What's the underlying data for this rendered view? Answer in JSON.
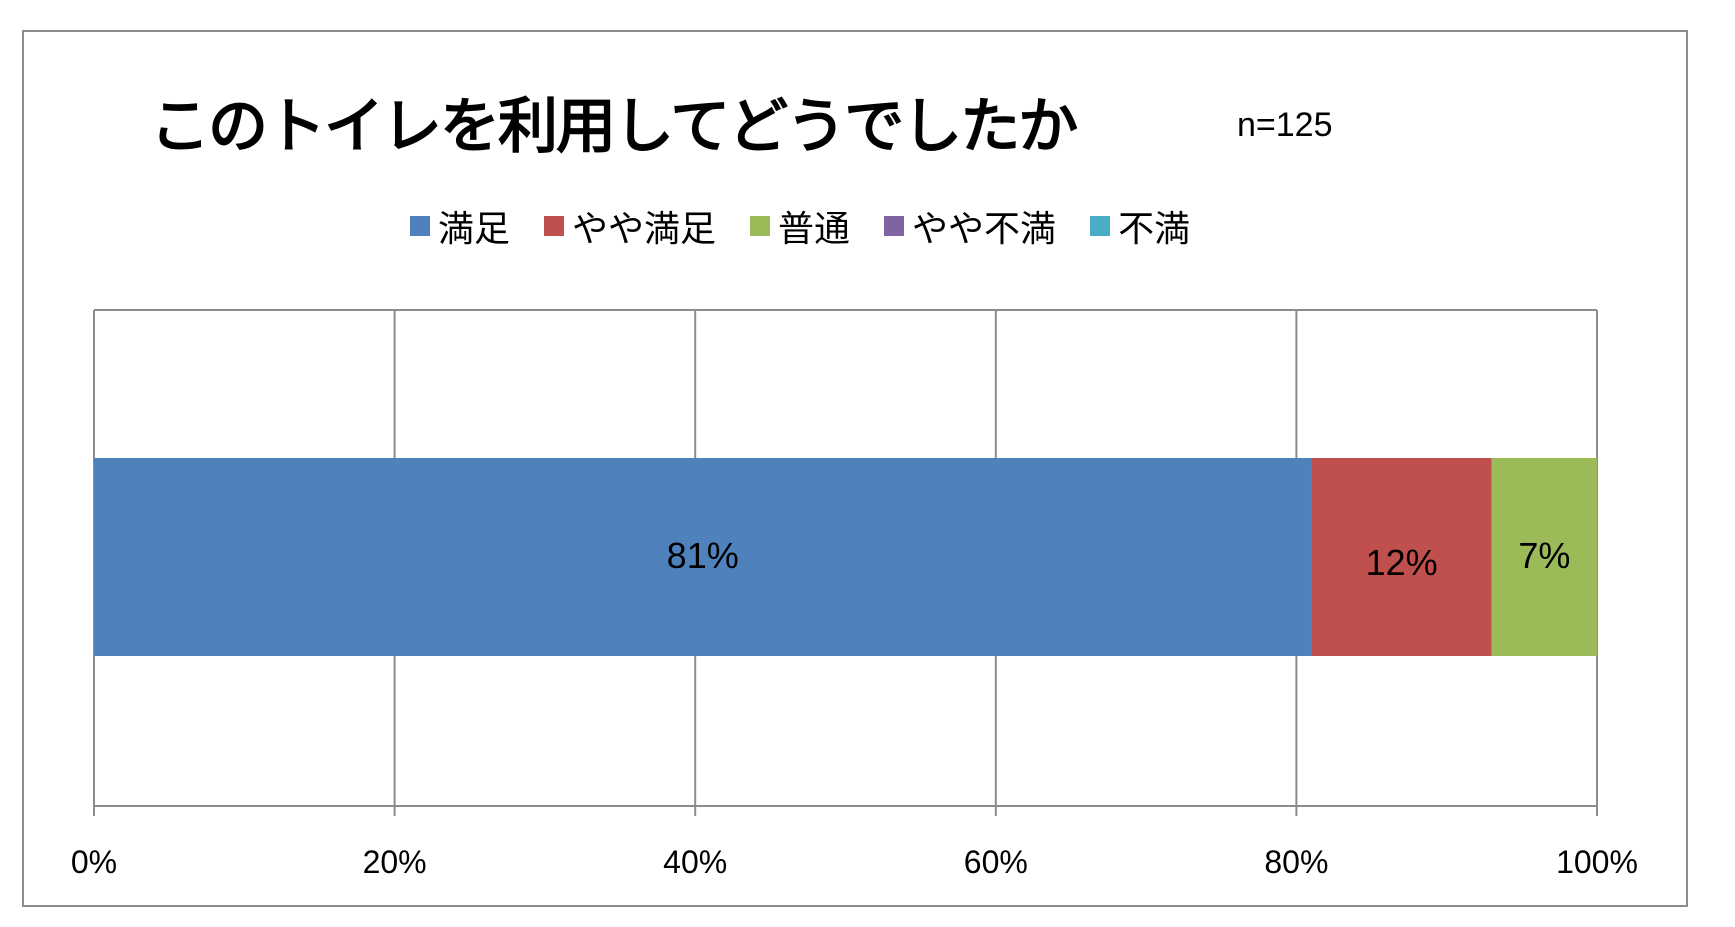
{
  "chart_data": {
    "type": "bar",
    "orientation": "horizontal",
    "stacked": true,
    "percent": true,
    "title": "このトイレを利用してどうでしたか",
    "subtitle": "n=125",
    "legend_position": "top",
    "grid": true,
    "xlim": [
      0,
      100
    ],
    "xticks": [
      "0%",
      "20%",
      "40%",
      "60%",
      "80%",
      "100%"
    ],
    "series": [
      {
        "name": "満足",
        "values": [
          81
        ],
        "label": "81%",
        "color": "#4f81bd"
      },
      {
        "name": "やや満足",
        "values": [
          12
        ],
        "label": "12%",
        "color": "#c0504d"
      },
      {
        "name": "普通",
        "values": [
          7
        ],
        "label": "7%",
        "color": "#9bbb59"
      },
      {
        "name": "やや不満",
        "values": [
          0
        ],
        "label": "",
        "color": "#8064a2"
      },
      {
        "name": "不満",
        "values": [
          0
        ],
        "label": "",
        "color": "#4bacc6"
      }
    ]
  }
}
